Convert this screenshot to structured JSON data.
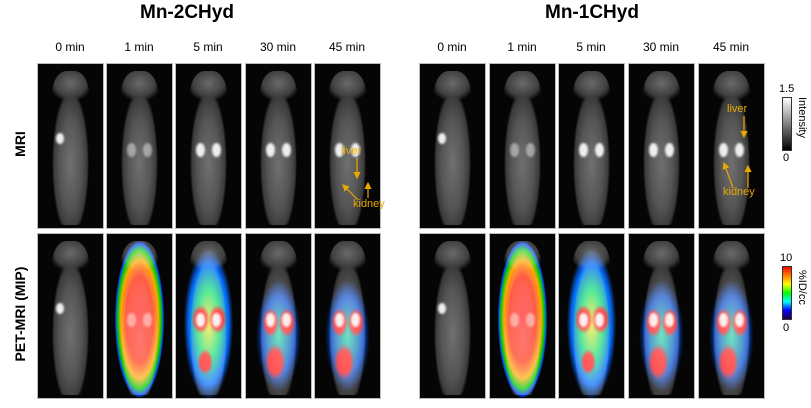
{
  "groups": [
    {
      "title": "Mn-2CHyd",
      "timepoints": [
        "0 min",
        "1 min",
        "5 min",
        "30 min",
        "45 min"
      ]
    },
    {
      "title": "Mn-1CHyd",
      "timepoints": [
        "0 min",
        "1 min",
        "5 min",
        "30 min",
        "45 min"
      ]
    }
  ],
  "rows": [
    "MRI",
    "PET-MRI (MIP)"
  ],
  "annotations": {
    "liver": "liver",
    "kidney": "kidney",
    "color": "#e8a800"
  },
  "colorbars": {
    "mri": {
      "max": "1.5",
      "min": "0",
      "label": "Intensity",
      "colormap": "grayscale"
    },
    "pet": {
      "max": "10",
      "min": "0",
      "label": "%ID/cc",
      "colormap": "jet"
    }
  },
  "pet_intensity": {
    "Mn-2CHyd": [
      0,
      0.9,
      0.7,
      0.55,
      0.5
    ],
    "Mn-1CHyd": [
      0,
      1.0,
      0.75,
      0.55,
      0.5
    ]
  }
}
